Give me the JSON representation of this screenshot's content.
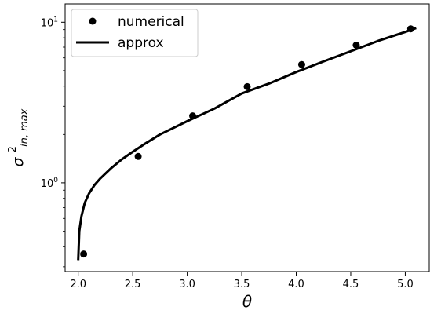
{
  "chart_data": {
    "type": "scatter",
    "title": "",
    "xlabel": "θ",
    "ylabel": {
      "symbol": "σ",
      "superscript": "2",
      "subscript": "in, max"
    },
    "yscale": "log",
    "xlim": [
      1.88,
      5.22
    ],
    "ylim": [
      0.28,
      13.0
    ],
    "x_ticks": [
      {
        "value": 2.0,
        "label": "2.0"
      },
      {
        "value": 2.5,
        "label": "2.5"
      },
      {
        "value": 3.0,
        "label": "3.0"
      },
      {
        "value": 3.5,
        "label": "3.5"
      },
      {
        "value": 4.0,
        "label": "4.0"
      },
      {
        "value": 4.5,
        "label": "4.5"
      },
      {
        "value": 5.0,
        "label": "5.0"
      }
    ],
    "y_major_ticks": [
      {
        "value": 1,
        "base": "10",
        "exponent": "0"
      },
      {
        "value": 10,
        "base": "10",
        "exponent": "1"
      }
    ],
    "y_minor_ticks": [
      0.3,
      0.4,
      0.5,
      0.6,
      0.7,
      0.8,
      0.9,
      2,
      3,
      4,
      5,
      6,
      7,
      8,
      9
    ],
    "grid": false,
    "legend": {
      "placement": "top-left",
      "entries": [
        "numerical",
        "approx"
      ]
    },
    "series": [
      {
        "name": "numerical",
        "kind": "markers",
        "color": "#000000",
        "points": [
          {
            "x": 2.05,
            "y": 0.36
          },
          {
            "x": 2.55,
            "y": 1.46
          },
          {
            "x": 3.05,
            "y": 2.61
          },
          {
            "x": 3.55,
            "y": 3.97
          },
          {
            "x": 4.05,
            "y": 5.45
          },
          {
            "x": 4.55,
            "y": 7.2
          },
          {
            "x": 5.05,
            "y": 9.1
          }
        ]
      },
      {
        "name": "approx",
        "kind": "line",
        "color": "#000000",
        "points": [
          {
            "x": 2.0,
            "y": 0.33
          },
          {
            "x": 2.01,
            "y": 0.5
          },
          {
            "x": 2.03,
            "y": 0.62
          },
          {
            "x": 2.06,
            "y": 0.75
          },
          {
            "x": 2.1,
            "y": 0.86
          },
          {
            "x": 2.15,
            "y": 0.97
          },
          {
            "x": 2.2,
            "y": 1.06
          },
          {
            "x": 2.3,
            "y": 1.23
          },
          {
            "x": 2.4,
            "y": 1.4
          },
          {
            "x": 2.5,
            "y": 1.56
          },
          {
            "x": 2.6,
            "y": 1.73
          },
          {
            "x": 2.75,
            "y": 2.0
          },
          {
            "x": 3.0,
            "y": 2.42
          },
          {
            "x": 3.25,
            "y": 2.9
          },
          {
            "x": 3.5,
            "y": 3.6
          },
          {
            "x": 3.75,
            "y": 4.15
          },
          {
            "x": 4.0,
            "y": 4.9
          },
          {
            "x": 4.25,
            "y": 5.7
          },
          {
            "x": 4.5,
            "y": 6.6
          },
          {
            "x": 4.75,
            "y": 7.65
          },
          {
            "x": 5.0,
            "y": 8.7
          },
          {
            "x": 5.1,
            "y": 9.2
          }
        ]
      }
    ]
  }
}
